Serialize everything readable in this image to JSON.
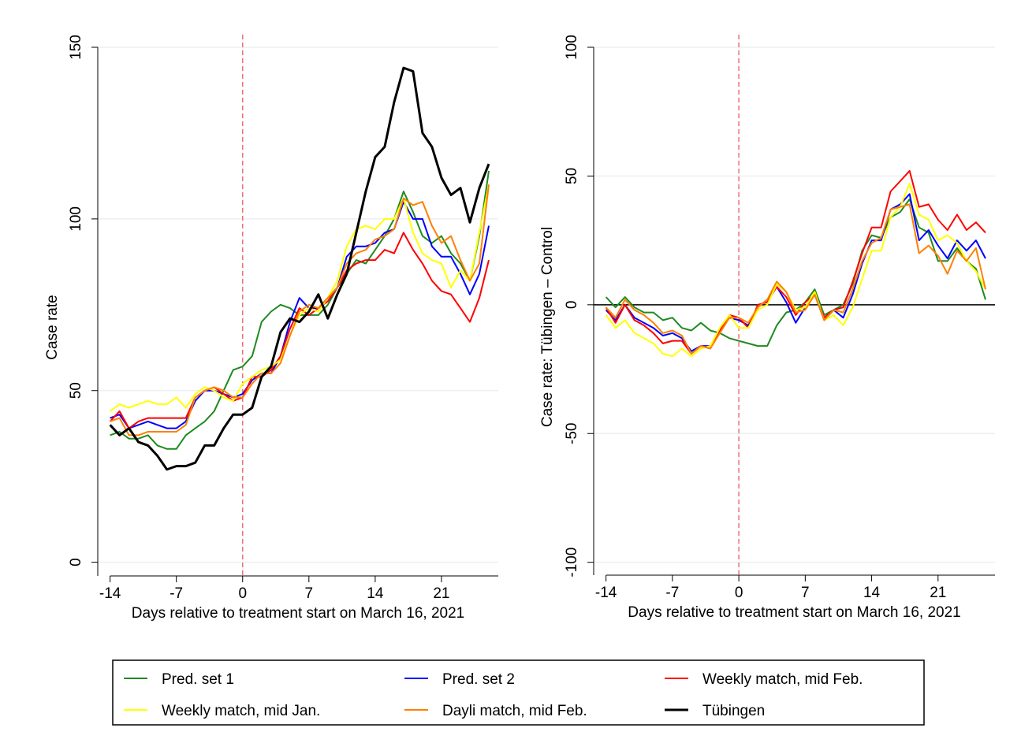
{
  "chart_data": [
    {
      "type": "line",
      "xlabel": "Days relative to treatment start on March 16, 2021",
      "ylabel": "Case rate",
      "x": [
        -14,
        -13,
        -12,
        -11,
        -10,
        -9,
        -8,
        -7,
        -6,
        -5,
        -4,
        -3,
        -2,
        -1,
        0,
        1,
        2,
        3,
        4,
        5,
        6,
        7,
        8,
        9,
        10,
        11,
        12,
        13,
        14,
        15,
        16,
        17,
        18,
        19,
        20,
        21,
        22,
        23,
        24,
        25,
        26
      ],
      "xlim": [
        -15.3,
        27
      ],
      "xticks": [
        -14,
        -7,
        0,
        7,
        14,
        21
      ],
      "ylim": [
        -4,
        150
      ],
      "yticks": [
        0,
        50,
        100,
        150
      ],
      "grid": true,
      "vline": 0,
      "series": [
        {
          "name": "Pred. set 1",
          "color": "#1f8a1f",
          "values": [
            37,
            38,
            36,
            36,
            37,
            34,
            33,
            33,
            37,
            39,
            41,
            44,
            50,
            56,
            57,
            60,
            70,
            73,
            75,
            74,
            72,
            72,
            72,
            75,
            80,
            84,
            88,
            87,
            91,
            95,
            100,
            108,
            102,
            95,
            93,
            95,
            90,
            87,
            82,
            95,
            114
          ]
        },
        {
          "name": "Pred. set 2",
          "color": "#0000ff",
          "values": [
            42,
            43,
            39,
            40,
            41,
            40,
            39,
            39,
            41,
            47,
            50,
            50,
            49,
            48,
            49,
            53,
            55,
            55,
            60,
            70,
            77,
            74,
            74,
            77,
            80,
            89,
            92,
            92,
            93,
            96,
            97,
            105,
            100,
            100,
            92,
            89,
            89,
            84,
            78,
            84,
            98
          ]
        },
        {
          "name": "Weekly match, mid Feb.",
          "color": "#ff0000",
          "values": [
            41,
            44,
            39,
            41,
            42,
            42,
            42,
            42,
            42,
            48,
            50,
            51,
            49,
            47,
            48,
            54,
            54,
            56,
            60,
            68,
            74,
            72,
            74,
            76,
            80,
            85,
            87,
            88,
            88,
            91,
            90,
            96,
            91,
            87,
            82,
            79,
            78,
            74,
            70,
            77,
            88
          ]
        },
        {
          "name": "Weekly match, mid Jan.",
          "color": "#ffff00",
          "values": [
            44,
            46,
            45,
            46,
            47,
            46,
            46,
            48,
            45,
            49,
            51,
            50,
            48,
            47,
            52,
            54,
            56,
            57,
            59,
            66,
            72,
            74,
            73,
            77,
            82,
            92,
            97,
            98,
            97,
            100,
            100,
            106,
            96,
            90,
            88,
            87,
            80,
            85,
            82,
            96,
            110
          ]
        },
        {
          "name": "Dayli match, mid Feb.",
          "color": "#ff8000",
          "values": [
            41,
            42,
            37,
            37,
            38,
            38,
            38,
            38,
            40,
            48,
            50,
            51,
            50,
            48,
            48,
            52,
            55,
            55,
            58,
            66,
            73,
            75,
            74,
            77,
            80,
            87,
            90,
            91,
            94,
            95,
            97,
            106,
            104,
            105,
            98,
            93,
            95,
            88,
            82,
            87,
            110
          ]
        },
        {
          "name": "Tübingen",
          "color": "#000000",
          "values": [
            40,
            37,
            39,
            35,
            34,
            31,
            27,
            28,
            28,
            29,
            34,
            34,
            39,
            43,
            43,
            45,
            54,
            57,
            67,
            71,
            70,
            73,
            78,
            71,
            78,
            84,
            96,
            108,
            118,
            121,
            134,
            144,
            143,
            125,
            121,
            112,
            107,
            109,
            99,
            109,
            116
          ]
        }
      ]
    },
    {
      "type": "line",
      "xlabel": "Days relative to treatment start on March 16, 2021",
      "ylabel": "Case rate: Tübingen – Control",
      "x": [
        -14,
        -13,
        -12,
        -11,
        -10,
        -9,
        -8,
        -7,
        -6,
        -5,
        -4,
        -3,
        -2,
        -1,
        0,
        1,
        2,
        3,
        4,
        5,
        6,
        7,
        8,
        9,
        10,
        11,
        12,
        13,
        14,
        15,
        16,
        17,
        18,
        19,
        20,
        21,
        22,
        23,
        24,
        25,
        26
      ],
      "xlim": [
        -15.3,
        27
      ],
      "xticks": [
        -14,
        -7,
        0,
        7,
        14,
        21
      ],
      "ylim": [
        -105,
        100
      ],
      "yticks": [
        -100,
        -50,
        0,
        50,
        100
      ],
      "grid": true,
      "vline": 0,
      "hline": 0,
      "series": [
        {
          "name": "Pred. set 1",
          "color": "#1f8a1f",
          "values": [
            3,
            -1,
            3,
            -1,
            -3,
            -3,
            -6,
            -5,
            -9,
            -10,
            -7,
            -10,
            -11,
            -13,
            -14,
            -15,
            -16,
            -16,
            -8,
            -3,
            -2,
            1,
            6,
            -4,
            -2,
            0,
            8,
            21,
            27,
            26,
            34,
            36,
            41,
            30,
            28,
            17,
            17,
            22,
            17,
            14,
            2
          ]
        },
        {
          "name": "Pred. set 2",
          "color": "#0000ff",
          "values": [
            -2,
            -6,
            0,
            -5,
            -7,
            -9,
            -12,
            -11,
            -13,
            -18,
            -16,
            -16,
            -10,
            -5,
            -6,
            -8,
            -1,
            2,
            7,
            1,
            -7,
            -1,
            4,
            -6,
            -2,
            -5,
            4,
            16,
            25,
            25,
            37,
            39,
            43,
            25,
            29,
            23,
            18,
            25,
            21,
            25,
            18
          ]
        },
        {
          "name": "Weekly match, mid Feb.",
          "color": "#ff0000",
          "values": [
            -1,
            -7,
            0,
            -6,
            -8,
            -11,
            -15,
            -14,
            -14,
            -19,
            -16,
            -17,
            -10,
            -4,
            -5,
            -9,
            0,
            1,
            7,
            3,
            -4,
            1,
            4,
            -5,
            -2,
            -1,
            9,
            20,
            30,
            30,
            44,
            48,
            52,
            38,
            39,
            33,
            29,
            35,
            29,
            32,
            28
          ]
        },
        {
          "name": "Weekly match, mid Jan.",
          "color": "#ffff00",
          "values": [
            -4,
            -9,
            -6,
            -11,
            -13,
            -15,
            -19,
            -20,
            -17,
            -20,
            -17,
            -16,
            -9,
            -4,
            -9,
            -9,
            -2,
            0,
            8,
            5,
            -2,
            -1,
            5,
            -6,
            -4,
            -8,
            -1,
            10,
            21,
            21,
            34,
            38,
            47,
            35,
            33,
            25,
            27,
            24,
            17,
            13,
            6
          ]
        },
        {
          "name": "Dayli match, mid Feb.",
          "color": "#ff8000",
          "values": [
            -1,
            -5,
            2,
            -2,
            -4,
            -7,
            -11,
            -10,
            -12,
            -19,
            -16,
            -17,
            -11,
            -5,
            -5,
            -7,
            -1,
            2,
            9,
            5,
            -3,
            -2,
            4,
            -6,
            -2,
            -3,
            6,
            17,
            24,
            26,
            37,
            38,
            39,
            20,
            23,
            19,
            12,
            21,
            17,
            22,
            6
          ]
        }
      ]
    }
  ]
}
